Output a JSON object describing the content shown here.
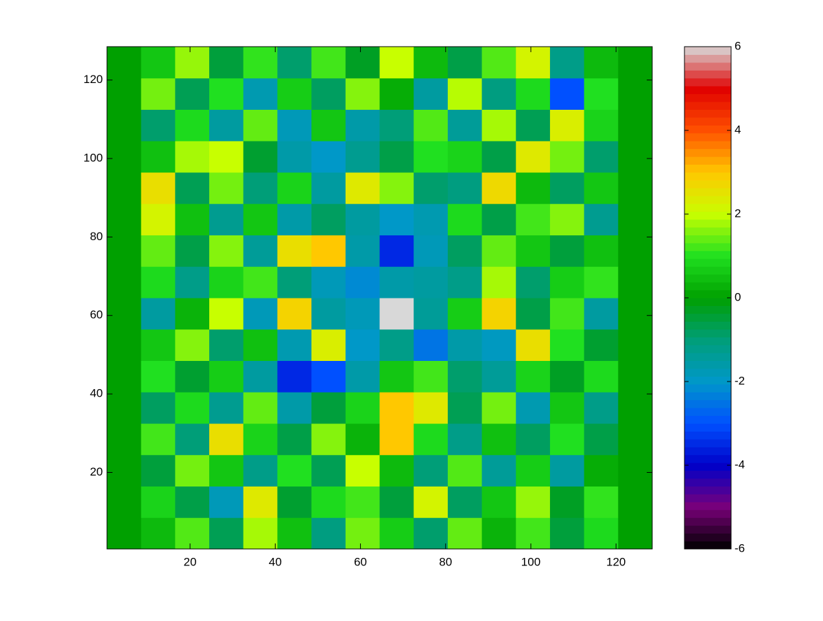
{
  "chart_data": {
    "type": "heatmap",
    "x": [
      4.5,
      12.5,
      20.5,
      28.5,
      36.5,
      44.5,
      52.5,
      60.5,
      68.5,
      76.5,
      84.5,
      92.5,
      100.5,
      108.5,
      116.5,
      124.5
    ],
    "y": [
      4.5,
      12.5,
      20.5,
      28.5,
      36.5,
      44.5,
      52.5,
      60.5,
      68.5,
      76.5,
      84.5,
      92.5,
      100.5,
      108.5,
      116.5,
      124.5
    ],
    "z": [
      [
        0,
        0.4,
        1.3,
        -0.7,
        1.8,
        0.5,
        -1.1,
        1.5,
        0.7,
        -0.9,
        1.4,
        0.3,
        1.2,
        -0.5,
        0.9,
        0
      ],
      [
        0,
        0.8,
        -0.6,
        -1.8,
        2.4,
        -0.4,
        0.9,
        1.2,
        -0.5,
        2.2,
        -0.8,
        0.6,
        1.7,
        -0.3,
        1.1,
        0
      ],
      [
        0,
        -0.5,
        1.5,
        0.6,
        -1.2,
        1.0,
        -0.7,
        2.0,
        0.4,
        -1.0,
        1.3,
        -1.4,
        0.7,
        -1.5,
        0.2,
        0
      ],
      [
        0,
        1.2,
        -1.0,
        2.6,
        0.8,
        -0.6,
        1.6,
        0.3,
        3.0,
        0.9,
        -1.2,
        0.5,
        -0.8,
        1.0,
        -0.6,
        0
      ],
      [
        0,
        -0.8,
        0.9,
        -1.3,
        1.4,
        -1.6,
        -0.5,
        0.8,
        3.0,
        2.4,
        -0.7,
        1.5,
        -1.7,
        0.6,
        -1.2,
        0
      ],
      [
        0,
        1.0,
        -0.4,
        0.7,
        -1.5,
        -3.5,
        -3.0,
        -1.6,
        0.6,
        1.2,
        -0.9,
        -1.4,
        0.8,
        -0.3,
        0.9,
        0
      ],
      [
        0,
        0.6,
        1.6,
        -0.9,
        0.5,
        -1.7,
        2.3,
        -2.0,
        -1.2,
        -2.5,
        -1.6,
        -1.9,
        2.6,
        1.0,
        -0.4,
        0
      ],
      [
        0,
        -1.5,
        0.3,
        2.0,
        -1.8,
        2.8,
        -1.5,
        -1.8,
        6.0,
        -1.4,
        0.7,
        2.8,
        -0.6,
        1.2,
        -1.5,
        0
      ],
      [
        0,
        0.9,
        -1.2,
        0.8,
        1.2,
        -1.0,
        -1.8,
        -2.2,
        -1.6,
        -1.5,
        -1.2,
        1.8,
        -0.9,
        0.7,
        1.1,
        0
      ],
      [
        0,
        1.4,
        -0.6,
        1.6,
        -1.4,
        2.6,
        3.0,
        -1.6,
        -3.5,
        -1.8,
        -0.8,
        1.4,
        0.6,
        -0.5,
        0.5,
        0
      ],
      [
        0,
        2.2,
        0.5,
        -1.3,
        0.6,
        -1.6,
        -0.8,
        -1.5,
        -2.0,
        -1.7,
        0.9,
        -0.6,
        1.2,
        1.6,
        -1.3,
        0
      ],
      [
        0,
        2.6,
        -0.7,
        1.5,
        -1.0,
        0.8,
        -1.5,
        2.4,
        1.6,
        -0.9,
        -1.1,
        2.7,
        0.4,
        -0.8,
        0.6,
        0
      ],
      [
        0,
        0.5,
        1.8,
        2.0,
        -0.4,
        -1.6,
        -2.0,
        -1.3,
        -0.6,
        1.0,
        0.8,
        -0.6,
        2.4,
        1.5,
        -0.9,
        0
      ],
      [
        0,
        -0.9,
        0.9,
        -1.5,
        1.4,
        -1.8,
        0.6,
        -1.6,
        -1.0,
        1.3,
        -1.4,
        1.8,
        -0.7,
        2.3,
        0.8,
        0
      ],
      [
        0,
        1.5,
        -0.7,
        1.0,
        -1.7,
        0.7,
        -0.8,
        1.6,
        0.2,
        -1.5,
        1.9,
        -1.1,
        0.9,
        -3.0,
        1.0,
        0
      ],
      [
        0,
        0.6,
        1.7,
        -0.5,
        1.1,
        -0.9,
        1.2,
        -0.3,
        2.0,
        0.4,
        -0.6,
        1.3,
        2.2,
        -1.2,
        0.4,
        0
      ]
    ],
    "xlim": [
      0.5,
      128.5
    ],
    "ylim": [
      0.5,
      128.5
    ],
    "xticks": [
      20,
      40,
      60,
      80,
      100,
      120
    ],
    "yticks": [
      20,
      40,
      60,
      80,
      100,
      120
    ],
    "clim": [
      -6,
      6
    ],
    "cticks": [
      -6,
      -4,
      -2,
      0,
      2,
      4,
      6
    ],
    "colormap": [
      "#000000",
      "#7a007a",
      "#0000c8",
      "#0050ff",
      "#0098c8",
      "#009e78",
      "#00a000",
      "#20e020",
      "#c8ff00",
      "#ffc800",
      "#ff5000",
      "#e00000",
      "#d8d8d8"
    ]
  }
}
